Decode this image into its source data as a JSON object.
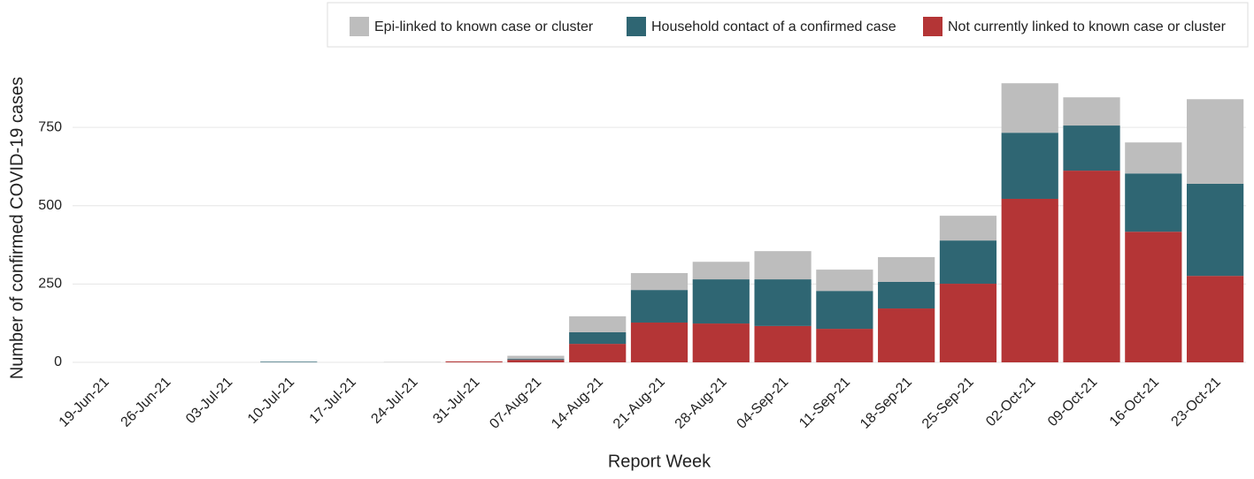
{
  "chart_data": {
    "type": "stacked_bar",
    "x_label": "Report Week",
    "y_label": "Number of confirmed COVID-19 cases",
    "categories": [
      "19-Jun-21",
      "26-Jun-21",
      "03-Jul-21",
      "10-Jul-21",
      "17-Jul-21",
      "24-Jul-21",
      "31-Jul-21",
      "07-Aug-21",
      "14-Aug-21",
      "21-Aug-21",
      "28-Aug-21",
      "04-Sep-21",
      "11-Sep-21",
      "18-Sep-21",
      "25-Sep-21",
      "02-Oct-21",
      "09-Oct-21",
      "16-Oct-21",
      "23-Oct-21"
    ],
    "series": [
      {
        "name": "Epi-linked to known case or cluster",
        "color": "#bdbdbd",
        "values": [
          0,
          0,
          0,
          0,
          0,
          1,
          0,
          10,
          51,
          54,
          56,
          90,
          68,
          79,
          79,
          158,
          90,
          99,
          270
        ]
      },
      {
        "name": "Household contact of a confirmed case",
        "color": "#2f6673",
        "values": [
          0,
          0,
          0,
          2,
          0,
          0,
          0,
          3,
          37,
          104,
          141,
          149,
          121,
          85,
          138,
          211,
          144,
          186,
          294
        ]
      },
      {
        "name": "Not currently linked to known case or cluster",
        "color": "#b43536",
        "values": [
          0,
          0,
          0,
          0,
          0,
          0,
          3,
          8,
          59,
          127,
          124,
          116,
          107,
          172,
          251,
          522,
          612,
          417,
          276
        ]
      }
    ],
    "ylim": [
      0,
      900
    ],
    "yticks": [
      0,
      250,
      500,
      750
    ],
    "grid": true
  }
}
